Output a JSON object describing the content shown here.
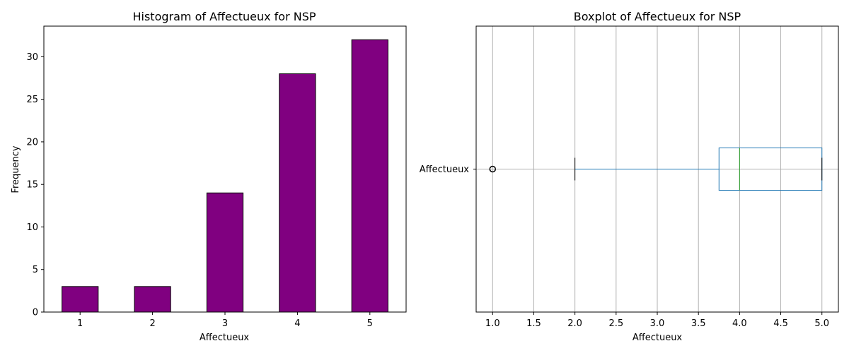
{
  "chart_data": [
    {
      "type": "bar",
      "title": "Histogram of Affectueux for NSP",
      "xlabel": "Affectueux",
      "ylabel": "Frequency",
      "categories": [
        "1",
        "2",
        "3",
        "4",
        "5"
      ],
      "values": [
        3,
        3,
        14,
        28,
        32
      ],
      "ylim": [
        0,
        33.6
      ],
      "yticks": [
        0,
        5,
        10,
        15,
        20,
        25,
        30
      ],
      "grid": false,
      "colors": {
        "bar": "#800080",
        "edge": "#000000"
      }
    },
    {
      "type": "boxplot",
      "title": "Boxplot of Affectueux for NSP",
      "xlabel": "Affectueux",
      "ylabel": "",
      "category": "Affectueux",
      "orientation": "horizontal",
      "stats": {
        "whisker_low": 2.0,
        "q1": 3.75,
        "median": 4.0,
        "q3": 5.0,
        "whisker_high": 5.0
      },
      "outliers": [
        1.0
      ],
      "xlim": [
        0.8,
        5.2
      ],
      "xticks": [
        "1.0",
        "1.5",
        "2.0",
        "2.5",
        "3.0",
        "3.5",
        "4.0",
        "4.5",
        "5.0"
      ],
      "grid": true,
      "colors": {
        "box": "#1f77b4",
        "median": "#2ca02c",
        "cap": "#000000",
        "grid": "#b0b0b0"
      }
    }
  ]
}
